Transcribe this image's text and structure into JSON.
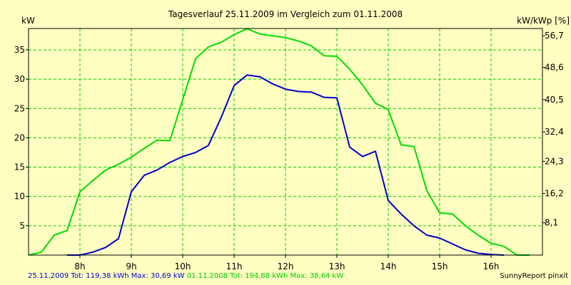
{
  "chart_data": {
    "type": "line",
    "title": "Tagesverlauf 25.11.2009 im Vergleich zum 01.11.2008",
    "ylabel_left": "kW",
    "ylabel_right": "kW/kWp [%]",
    "xlim": [
      7,
      17
    ],
    "ylim": [
      0,
      38.64
    ],
    "x_ticks": [
      {
        "v": 8,
        "label": "8h"
      },
      {
        "v": 9,
        "label": "9h"
      },
      {
        "v": 10,
        "label": "10h"
      },
      {
        "v": 11,
        "label": "11h"
      },
      {
        "v": 12,
        "label": "12h"
      },
      {
        "v": 13,
        "label": "13h"
      },
      {
        "v": 14,
        "label": "14h"
      },
      {
        "v": 15,
        "label": "15h"
      },
      {
        "v": 16,
        "label": "16h"
      }
    ],
    "y_ticks_left": [
      {
        "v": 5,
        "label": "5"
      },
      {
        "v": 10,
        "label": "10"
      },
      {
        "v": 15,
        "label": "15"
      },
      {
        "v": 20,
        "label": "20"
      },
      {
        "v": 25,
        "label": "25"
      },
      {
        "v": 30,
        "label": "30"
      },
      {
        "v": 35,
        "label": "35"
      }
    ],
    "y_ticks_right": [
      {
        "v": 5.5,
        "label": "8,1"
      },
      {
        "v": 10.5,
        "label": "16,2"
      },
      {
        "v": 16,
        "label": "24,3"
      },
      {
        "v": 21,
        "label": "32,4"
      },
      {
        "v": 26.5,
        "label": "40,5"
      },
      {
        "v": 32,
        "label": "48,6"
      },
      {
        "v": 37.4,
        "label": "56,7"
      }
    ],
    "grid": true,
    "series": [
      {
        "name": "25.11.2009",
        "color": "#0000cc",
        "points": [
          [
            7.75,
            0
          ],
          [
            8.0,
            0
          ],
          [
            8.25,
            0.5
          ],
          [
            8.5,
            1.3
          ],
          [
            8.75,
            2.8
          ],
          [
            9.0,
            10.8
          ],
          [
            9.25,
            13.6
          ],
          [
            9.5,
            14.5
          ],
          [
            9.75,
            15.8
          ],
          [
            10.0,
            16.8
          ],
          [
            10.25,
            17.5
          ],
          [
            10.5,
            18.7
          ],
          [
            10.75,
            23.5
          ],
          [
            11.0,
            28.9
          ],
          [
            11.25,
            30.7
          ],
          [
            11.5,
            30.4
          ],
          [
            11.75,
            29.2
          ],
          [
            12.0,
            28.3
          ],
          [
            12.25,
            27.9
          ],
          [
            12.5,
            27.8
          ],
          [
            12.75,
            26.9
          ],
          [
            13.0,
            26.8
          ],
          [
            13.25,
            18.4
          ],
          [
            13.5,
            16.8
          ],
          [
            13.75,
            17.7
          ],
          [
            14.0,
            9.3
          ],
          [
            14.25,
            7.0
          ],
          [
            14.5,
            5.0
          ],
          [
            14.75,
            3.4
          ],
          [
            15.0,
            2.9
          ],
          [
            15.25,
            1.9
          ],
          [
            15.5,
            0.9
          ],
          [
            15.75,
            0.3
          ],
          [
            16.0,
            0.1
          ],
          [
            16.25,
            0
          ]
        ]
      },
      {
        "name": "01.11.2008",
        "color": "#00dd00",
        "points": [
          [
            7.0,
            0
          ],
          [
            7.25,
            0.5
          ],
          [
            7.5,
            3.4
          ],
          [
            7.75,
            4.2
          ],
          [
            8.0,
            10.8
          ],
          [
            8.25,
            12.7
          ],
          [
            8.5,
            14.5
          ],
          [
            8.75,
            15.5
          ],
          [
            9.0,
            16.7
          ],
          [
            9.25,
            18.2
          ],
          [
            9.5,
            19.6
          ],
          [
            9.75,
            19.5
          ],
          [
            10.0,
            26.5
          ],
          [
            10.25,
            33.5
          ],
          [
            10.5,
            35.5
          ],
          [
            10.75,
            36.3
          ],
          [
            11.0,
            37.6
          ],
          [
            11.25,
            38.6
          ],
          [
            11.5,
            37.7
          ],
          [
            11.75,
            37.4
          ],
          [
            12.0,
            37.1
          ],
          [
            12.25,
            36.5
          ],
          [
            12.5,
            35.7
          ],
          [
            12.75,
            34.0
          ],
          [
            13.0,
            33.9
          ],
          [
            13.25,
            31.7
          ],
          [
            13.5,
            29.0
          ],
          [
            13.75,
            25.9
          ],
          [
            14.0,
            24.8
          ],
          [
            14.25,
            18.8
          ],
          [
            14.5,
            18.5
          ],
          [
            14.75,
            11.0
          ],
          [
            15.0,
            7.2
          ],
          [
            15.25,
            7.0
          ],
          [
            15.5,
            5.0
          ],
          [
            15.75,
            3.4
          ],
          [
            16.0,
            2.0
          ],
          [
            16.25,
            1.5
          ],
          [
            16.5,
            0
          ],
          [
            16.75,
            0
          ]
        ]
      }
    ],
    "footer": {
      "series1_text": "25.11.2009 Tot: 119,38 kWh Max: 30,69 kW",
      "series2_text": "01.11.2008 Tot: 194,88 kWh Max: 38,64 kW",
      "credit": "SunnyReport pinxit"
    }
  },
  "colors": {
    "background": "#ffffc1",
    "grid": "#00cc00",
    "axis": "#000000"
  }
}
